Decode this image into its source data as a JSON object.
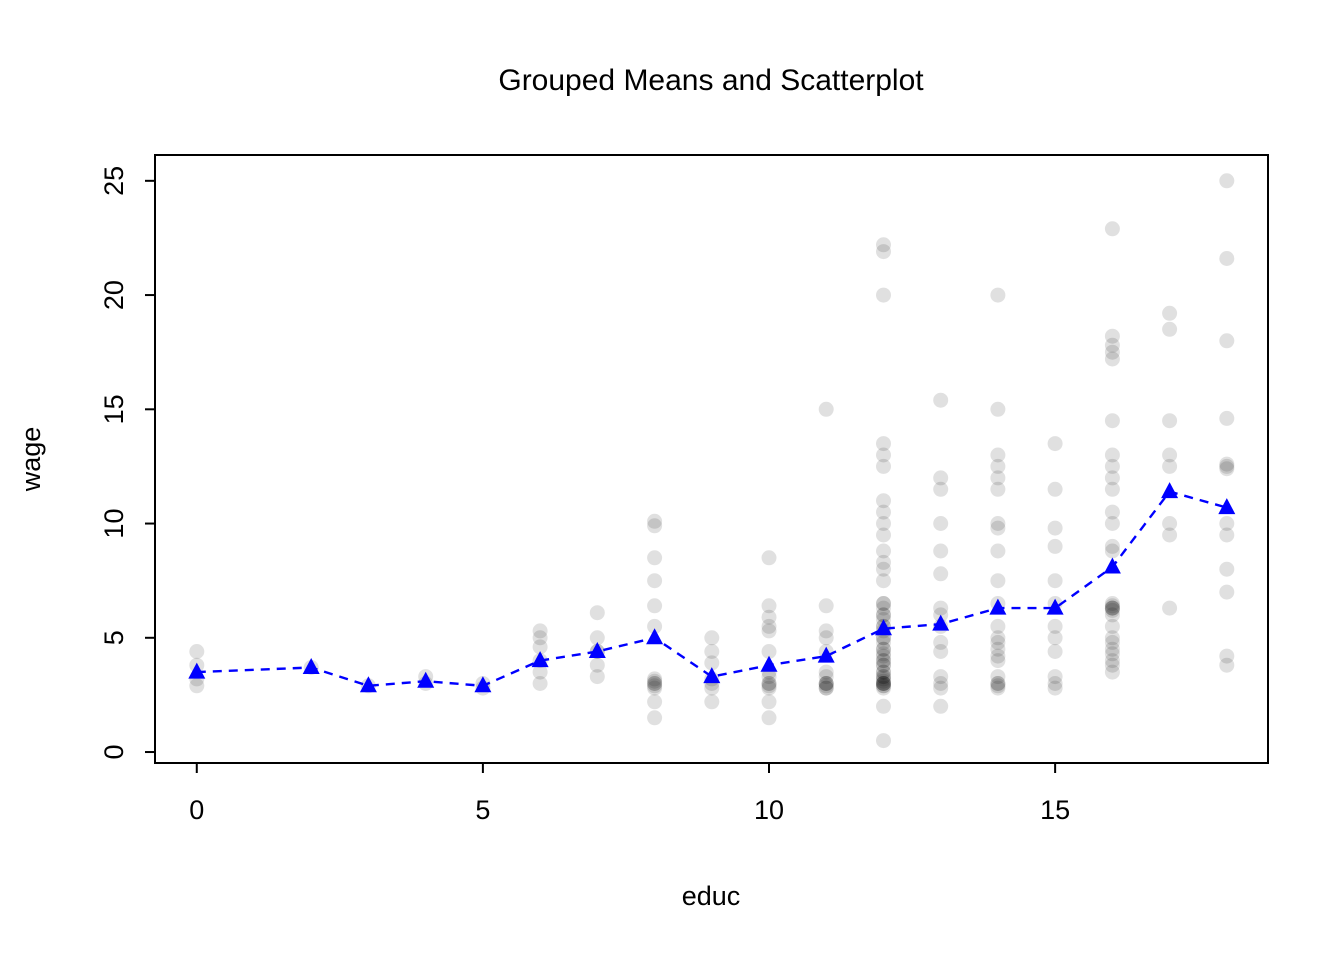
{
  "chart_data": {
    "type": "scatter",
    "title": "Grouped Means and Scatterplot",
    "xlabel": "educ",
    "ylabel": "wage",
    "xlim": [
      -0.73,
      18.72
    ],
    "ylim": [
      -0.48,
      26.13
    ],
    "xticks": [
      0,
      5,
      10,
      15
    ],
    "yticks": [
      0,
      5,
      10,
      15,
      20,
      25
    ],
    "grid": false,
    "legend": "none",
    "colors": {
      "scatter_point": "rgba(0,0,0,0.12)",
      "mean_line": "#0000ff",
      "axis": "#000000"
    },
    "series": [
      {
        "name": "wage-observations",
        "type": "scatter",
        "marker": "circle",
        "color": "rgba(0,0,0,0.12)",
        "points": [
          [
            0,
            2.9
          ],
          [
            0,
            3.2
          ],
          [
            0,
            3.8
          ],
          [
            0,
            4.4
          ],
          [
            2,
            3.7
          ],
          [
            3,
            2.9
          ],
          [
            4,
            3.0
          ],
          [
            4,
            3.3
          ],
          [
            5,
            2.8
          ],
          [
            5,
            3.0
          ],
          [
            6,
            3.0
          ],
          [
            6,
            3.5
          ],
          [
            6,
            4.0
          ],
          [
            6,
            4.6
          ],
          [
            6,
            5.0
          ],
          [
            6,
            5.3
          ],
          [
            7,
            3.3
          ],
          [
            7,
            3.8
          ],
          [
            7,
            4.4
          ],
          [
            7,
            4.4
          ],
          [
            7,
            5.0
          ],
          [
            7,
            6.1
          ],
          [
            8,
            1.5
          ],
          [
            8,
            2.2
          ],
          [
            8,
            2.8
          ],
          [
            8,
            2.9
          ],
          [
            8,
            3.0
          ],
          [
            8,
            3.0
          ],
          [
            8,
            3.1
          ],
          [
            8,
            3.2
          ],
          [
            8,
            5.5
          ],
          [
            8,
            6.4
          ],
          [
            8,
            7.5
          ],
          [
            8,
            8.5
          ],
          [
            8,
            9.9
          ],
          [
            8,
            10.1
          ],
          [
            9,
            2.2
          ],
          [
            9,
            2.8
          ],
          [
            9,
            3.0
          ],
          [
            9,
            3.2
          ],
          [
            9,
            3.9
          ],
          [
            9,
            4.4
          ],
          [
            9,
            5.0
          ],
          [
            10,
            1.5
          ],
          [
            10,
            2.2
          ],
          [
            10,
            2.8
          ],
          [
            10,
            2.9
          ],
          [
            10,
            3.0
          ],
          [
            10,
            3.0
          ],
          [
            10,
            3.3
          ],
          [
            10,
            3.5
          ],
          [
            10,
            4.4
          ],
          [
            10,
            5.3
          ],
          [
            10,
            5.5
          ],
          [
            10,
            5.9
          ],
          [
            10,
            6.4
          ],
          [
            10,
            8.5
          ],
          [
            11,
            2.8
          ],
          [
            11,
            2.8
          ],
          [
            11,
            2.9
          ],
          [
            11,
            3.0
          ],
          [
            11,
            3.0
          ],
          [
            11,
            3.0
          ],
          [
            11,
            3.3
          ],
          [
            11,
            3.5
          ],
          [
            11,
            4.4
          ],
          [
            11,
            5.0
          ],
          [
            11,
            5.3
          ],
          [
            11,
            6.4
          ],
          [
            11,
            15.0
          ],
          [
            12,
            0.5
          ],
          [
            12,
            2.0
          ],
          [
            12,
            2.8
          ],
          [
            12,
            2.9
          ],
          [
            12,
            2.9
          ],
          [
            12,
            3.0
          ],
          [
            12,
            3.0
          ],
          [
            12,
            3.0
          ],
          [
            12,
            3.0
          ],
          [
            12,
            3.1
          ],
          [
            12,
            3.2
          ],
          [
            12,
            3.3
          ],
          [
            12,
            3.3
          ],
          [
            12,
            3.5
          ],
          [
            12,
            3.5
          ],
          [
            12,
            3.8
          ],
          [
            12,
            3.8
          ],
          [
            12,
            4.0
          ],
          [
            12,
            4.0
          ],
          [
            12,
            4.2
          ],
          [
            12,
            4.3
          ],
          [
            12,
            4.5
          ],
          [
            12,
            4.5
          ],
          [
            12,
            4.8
          ],
          [
            12,
            5.0
          ],
          [
            12,
            5.0
          ],
          [
            12,
            5.3
          ],
          [
            12,
            5.5
          ],
          [
            12,
            5.5
          ],
          [
            12,
            5.8
          ],
          [
            12,
            6.0
          ],
          [
            12,
            6.0
          ],
          [
            12,
            6.3
          ],
          [
            12,
            6.5
          ],
          [
            12,
            6.5
          ],
          [
            12,
            7.5
          ],
          [
            12,
            8.0
          ],
          [
            12,
            8.3
          ],
          [
            12,
            8.8
          ],
          [
            12,
            9.5
          ],
          [
            12,
            10.0
          ],
          [
            12,
            10.5
          ],
          [
            12,
            11.0
          ],
          [
            12,
            12.5
          ],
          [
            12,
            13.0
          ],
          [
            12,
            13.5
          ],
          [
            12,
            20.0
          ],
          [
            12,
            21.9
          ],
          [
            12,
            22.2
          ],
          [
            13,
            2.0
          ],
          [
            13,
            2.8
          ],
          [
            13,
            3.0
          ],
          [
            13,
            3.3
          ],
          [
            13,
            4.4
          ],
          [
            13,
            4.8
          ],
          [
            13,
            5.5
          ],
          [
            13,
            6.0
          ],
          [
            13,
            6.3
          ],
          [
            13,
            7.8
          ],
          [
            13,
            8.8
          ],
          [
            13,
            10.0
          ],
          [
            13,
            11.5
          ],
          [
            13,
            12.0
          ],
          [
            13,
            15.4
          ],
          [
            14,
            2.8
          ],
          [
            14,
            2.9
          ],
          [
            14,
            3.0
          ],
          [
            14,
            3.0
          ],
          [
            14,
            3.3
          ],
          [
            14,
            4.0
          ],
          [
            14,
            4.2
          ],
          [
            14,
            4.5
          ],
          [
            14,
            4.8
          ],
          [
            14,
            5.0
          ],
          [
            14,
            5.5
          ],
          [
            14,
            6.5
          ],
          [
            14,
            7.5
          ],
          [
            14,
            8.8
          ],
          [
            14,
            9.8
          ],
          [
            14,
            10.0
          ],
          [
            14,
            11.5
          ],
          [
            14,
            12.0
          ],
          [
            14,
            12.5
          ],
          [
            14,
            13.0
          ],
          [
            14,
            15.0
          ],
          [
            14,
            20.0
          ],
          [
            15,
            2.8
          ],
          [
            15,
            3.0
          ],
          [
            15,
            3.3
          ],
          [
            15,
            4.4
          ],
          [
            15,
            5.0
          ],
          [
            15,
            5.5
          ],
          [
            15,
            6.5
          ],
          [
            15,
            7.5
          ],
          [
            15,
            9.0
          ],
          [
            15,
            9.8
          ],
          [
            15,
            11.5
          ],
          [
            15,
            13.5
          ],
          [
            16,
            3.5
          ],
          [
            16,
            3.8
          ],
          [
            16,
            4.0
          ],
          [
            16,
            4.3
          ],
          [
            16,
            4.5
          ],
          [
            16,
            4.8
          ],
          [
            16,
            5.0
          ],
          [
            16,
            5.5
          ],
          [
            16,
            6.0
          ],
          [
            16,
            6.2
          ],
          [
            16,
            6.3
          ],
          [
            16,
            6.3
          ],
          [
            16,
            6.3
          ],
          [
            16,
            6.4
          ],
          [
            16,
            6.5
          ],
          [
            16,
            8.8
          ],
          [
            16,
            9.0
          ],
          [
            16,
            10.0
          ],
          [
            16,
            10.5
          ],
          [
            16,
            11.5
          ],
          [
            16,
            12.0
          ],
          [
            16,
            12.5
          ],
          [
            16,
            13.0
          ],
          [
            16,
            14.5
          ],
          [
            16,
            17.2
          ],
          [
            16,
            17.5
          ],
          [
            16,
            17.8
          ],
          [
            16,
            18.2
          ],
          [
            16,
            22.9
          ],
          [
            17,
            6.3
          ],
          [
            17,
            9.5
          ],
          [
            17,
            10.0
          ],
          [
            17,
            12.5
          ],
          [
            17,
            13.0
          ],
          [
            17,
            14.5
          ],
          [
            17,
            18.5
          ],
          [
            17,
            19.2
          ],
          [
            18,
            3.8
          ],
          [
            18,
            4.2
          ],
          [
            18,
            7.0
          ],
          [
            18,
            8.0
          ],
          [
            18,
            9.5
          ],
          [
            18,
            10.0
          ],
          [
            18,
            12.4
          ],
          [
            18,
            12.5
          ],
          [
            18,
            12.6
          ],
          [
            18,
            14.6
          ],
          [
            18,
            18.0
          ],
          [
            18,
            21.6
          ],
          [
            18,
            25.0
          ]
        ]
      },
      {
        "name": "group-means",
        "type": "line",
        "marker": "triangle",
        "linestyle": "dashed",
        "color": "#0000ff",
        "points": [
          [
            0,
            3.5
          ],
          [
            2,
            3.7
          ],
          [
            3,
            2.9
          ],
          [
            4,
            3.1
          ],
          [
            5,
            2.9
          ],
          [
            6,
            4.0
          ],
          [
            7,
            4.4
          ],
          [
            8,
            5.0
          ],
          [
            9,
            3.3
          ],
          [
            10,
            3.8
          ],
          [
            11,
            4.2
          ],
          [
            12,
            5.4
          ],
          [
            13,
            5.6
          ],
          [
            14,
            6.3
          ],
          [
            15,
            6.3
          ],
          [
            16,
            8.1
          ],
          [
            17,
            11.4
          ],
          [
            18,
            10.7
          ]
        ]
      }
    ]
  }
}
